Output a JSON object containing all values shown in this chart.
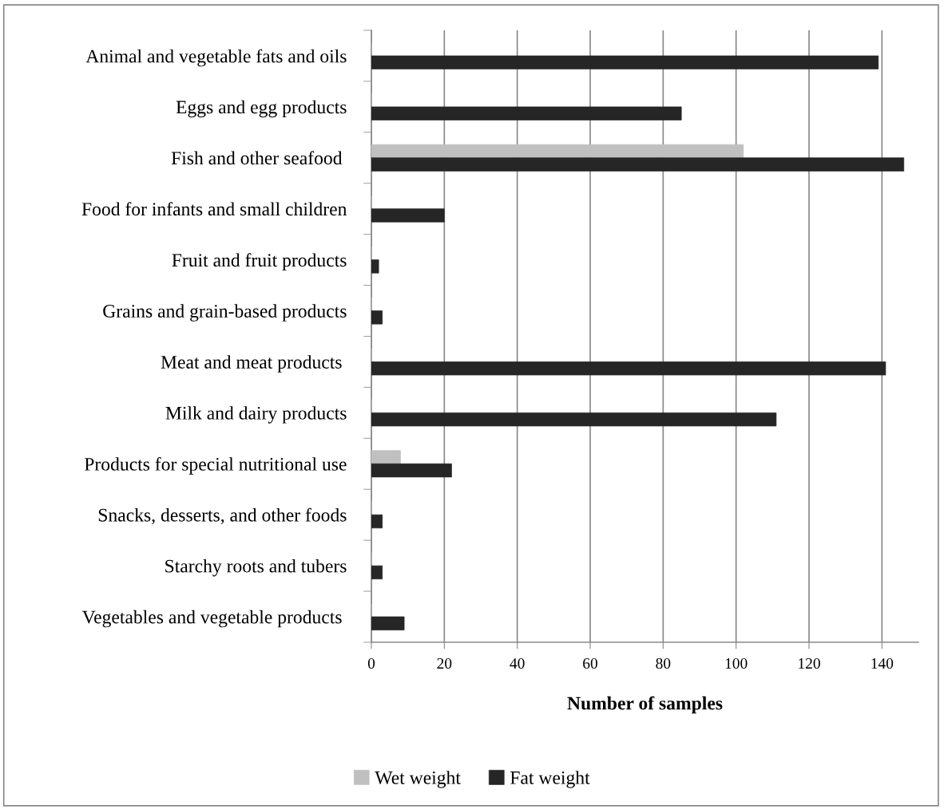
{
  "chart_data": {
    "type": "bar",
    "orientation": "horizontal",
    "xlabel": "Number of samples",
    "categories": [
      "Animal and vegetable fats and oils",
      "Eggs and egg products",
      "Fish and other seafood ",
      "Food for infants and small children",
      "Fruit and fruit products",
      "Grains and grain-based products",
      "Meat and meat products ",
      "Milk and dairy products",
      "Products for special nutritional use",
      "Snacks, desserts, and other foods",
      "Starchy roots and tubers",
      "Vegetables and vegetable products "
    ],
    "series": [
      {
        "name": "Wet weight",
        "color": "#c0c0c0",
        "values": [
          0,
          0,
          102,
          0,
          0,
          0,
          0,
          0,
          8,
          0,
          0,
          0
        ]
      },
      {
        "name": "Fat weight",
        "color": "#262626",
        "values": [
          139,
          85,
          146,
          20,
          2,
          3,
          141,
          111,
          22,
          3,
          3,
          9
        ]
      }
    ],
    "xlim": [
      0,
      150
    ],
    "xticks": [
      0,
      20,
      40,
      60,
      80,
      100,
      120,
      140
    ],
    "grid": "x",
    "legend": "bottom"
  }
}
